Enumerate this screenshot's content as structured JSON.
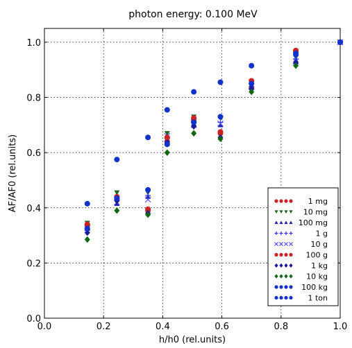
{
  "chart_data": {
    "type": "scatter",
    "title": "photon energy:   0.100 MeV",
    "xlabel": "h/h0 (rel.units)",
    "ylabel": "AF/AF0 (rel.units)",
    "xlim": [
      0.0,
      1.0
    ],
    "ylim": [
      0.0,
      1.05
    ],
    "xticks": [
      "0.0",
      "0.2",
      "0.4",
      "0.6",
      "0.8",
      "1.0"
    ],
    "yticks": [
      "0.0",
      "0.2",
      "0.4",
      "0.6",
      "0.8",
      "1.0"
    ],
    "grid": true,
    "legend_position": "bottom-right",
    "x": [
      0.145,
      0.245,
      0.35,
      0.415,
      0.505,
      0.595,
      0.7,
      0.85,
      1.0
    ],
    "series": [
      {
        "name": "1 mg",
        "color": "#cc2222",
        "marker": "circle",
        "values": [
          0.335,
          0.43,
          0.39,
          0.64,
          0.715,
          0.675,
          0.835,
          0.97,
          1.0
        ]
      },
      {
        "name": "10 mg",
        "color": "#226622",
        "marker": "triangle-down",
        "values": [
          0.345,
          0.455,
          0.455,
          0.67,
          0.73,
          0.725,
          0.855,
          0.945,
          1.0
        ]
      },
      {
        "name": "100 mg",
        "color": "#2222aa",
        "marker": "triangle-up",
        "values": [
          0.325,
          0.415,
          0.44,
          0.645,
          0.705,
          0.7,
          0.845,
          0.935,
          1.0
        ]
      },
      {
        "name": "1 g",
        "color": "#3333ee",
        "marker": "plus",
        "values": [
          0.32,
          0.44,
          0.445,
          0.655,
          0.72,
          0.71,
          0.85,
          0.94,
          1.0
        ]
      },
      {
        "name": "10 g",
        "color": "#5555ff",
        "marker": "x",
        "values": [
          0.33,
          0.42,
          0.43,
          0.66,
          0.7,
          0.705,
          0.84,
          0.93,
          1.0
        ]
      },
      {
        "name": "100 g",
        "color": "#cc2222",
        "marker": "circle",
        "values": [
          0.34,
          0.44,
          0.395,
          0.655,
          0.725,
          0.67,
          0.86,
          0.965,
          1.0
        ]
      },
      {
        "name": "1 kg",
        "color": "#1a1a99",
        "marker": "diamond",
        "values": [
          0.31,
          0.425,
          0.38,
          0.635,
          0.695,
          0.655,
          0.83,
          0.925,
          1.0
        ]
      },
      {
        "name": "10 kg",
        "color": "#116611",
        "marker": "diamond",
        "values": [
          0.285,
          0.39,
          0.375,
          0.6,
          0.67,
          0.65,
          0.82,
          0.915,
          1.0
        ]
      },
      {
        "name": "100 kg",
        "color": "#1133cc",
        "marker": "circle",
        "values": [
          0.325,
          0.435,
          0.465,
          0.63,
          0.71,
          0.73,
          0.85,
          0.955,
          1.0
        ]
      },
      {
        "name": "1 ton",
        "color": "#1133cc",
        "marker": "circle",
        "values": [
          0.415,
          0.575,
          0.655,
          0.755,
          0.82,
          0.855,
          0.915,
          0.96,
          1.0
        ]
      }
    ]
  }
}
